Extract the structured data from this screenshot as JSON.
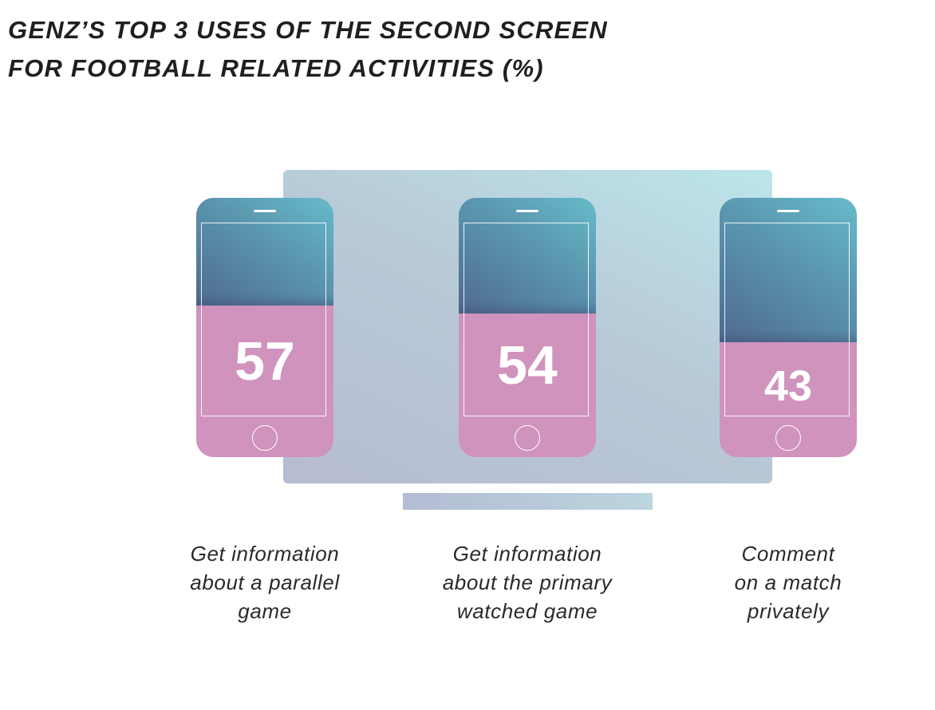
{
  "title": {
    "line1": "GENZ’S TOP 3 USES OF THE SECOND SCREEN",
    "line2": "FOR FOOTBALL RELATED ACTIVITIES (%)"
  },
  "colors": {
    "phone_fill": "#d093bd",
    "phone_screen_dark": "#5a8fab",
    "tv": "#b8c6d6",
    "title_text": "#1f1f1f"
  },
  "chart_data": {
    "type": "bar",
    "title": "GENZ’S TOP 3 USES OF THE SECOND SCREEN FOR FOOTBALL RELATED ACTIVITIES (%)",
    "categories": [
      "Get information about a parallel game",
      "Get information about the primary watched game",
      "Comment on a match privately"
    ],
    "values": [
      57,
      54,
      43
    ],
    "ylim": [
      0,
      100
    ],
    "xlabel": "",
    "ylabel": "",
    "grid": false,
    "legend": "none",
    "items": [
      {
        "value": "57",
        "label_lines": [
          "Get information",
          "about a parallel",
          "game"
        ]
      },
      {
        "value": "54",
        "label_lines": [
          "Get information",
          "about the primary",
          "watched game"
        ]
      },
      {
        "value": "43",
        "label_lines": [
          "Comment",
          "on a match",
          "privately"
        ]
      }
    ]
  }
}
